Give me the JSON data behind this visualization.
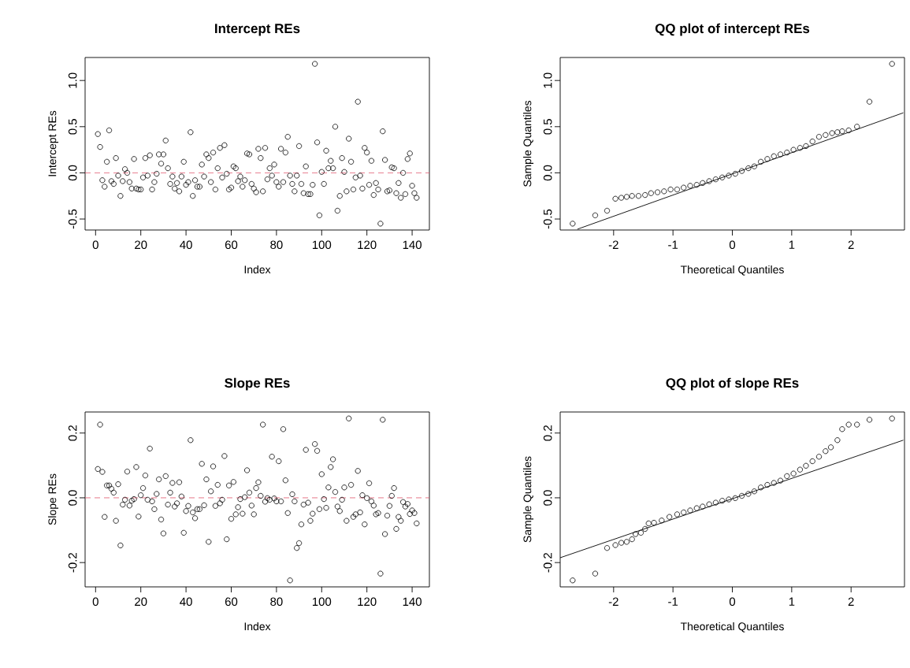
{
  "chart_data": [
    {
      "type": "scatter",
      "title": "Intercept REs",
      "xlabel": "Index",
      "ylabel": "Intercept REs",
      "marker": "circle",
      "color": "#000000",
      "x": [
        1,
        2,
        3,
        4,
        5,
        6,
        7,
        8,
        9,
        10,
        11,
        12,
        13,
        14,
        15,
        16,
        17,
        18,
        19,
        20,
        21,
        22,
        23,
        24,
        25,
        26,
        27,
        28,
        29,
        30,
        31,
        32,
        33,
        34,
        35,
        36,
        37,
        38,
        39,
        40,
        41,
        42,
        43,
        44,
        45,
        46,
        47,
        48,
        49,
        50,
        51,
        52,
        53,
        54,
        55,
        56,
        57,
        58,
        59,
        60,
        61,
        62,
        63,
        64,
        65,
        66,
        67,
        68,
        69,
        70,
        71,
        72,
        73,
        74,
        75,
        76,
        77,
        78,
        79,
        80,
        81,
        82,
        83,
        84,
        85,
        86,
        87,
        88,
        89,
        90,
        91,
        92,
        93,
        94,
        95,
        96,
        97,
        98,
        99,
        100,
        101,
        102,
        103,
        104,
        105,
        106,
        107,
        108,
        109,
        110,
        111,
        112,
        113,
        114,
        115,
        116,
        117,
        118,
        119,
        120,
        121,
        122,
        123,
        124,
        125,
        126,
        127,
        128,
        129,
        130,
        131,
        132,
        133,
        134,
        135,
        136,
        137,
        138,
        139,
        140,
        141,
        142
      ],
      "values": [
        0.42,
        0.28,
        -0.08,
        -0.15,
        0.12,
        0.46,
        -0.09,
        -0.12,
        0.16,
        -0.03,
        -0.25,
        -0.09,
        0.04,
        0.0,
        -0.1,
        -0.17,
        0.15,
        -0.17,
        -0.18,
        -0.18,
        -0.05,
        0.16,
        -0.03,
        0.19,
        -0.18,
        -0.1,
        -0.01,
        0.2,
        0.1,
        0.2,
        0.35,
        0.05,
        -0.12,
        -0.04,
        -0.17,
        -0.11,
        -0.2,
        -0.04,
        0.12,
        -0.13,
        -0.1,
        0.44,
        -0.25,
        -0.08,
        -0.15,
        -0.15,
        0.09,
        -0.04,
        0.2,
        0.16,
        -0.1,
        0.22,
        -0.18,
        0.05,
        0.27,
        -0.05,
        0.3,
        -0.01,
        -0.18,
        -0.16,
        0.07,
        0.05,
        -0.09,
        -0.04,
        -0.15,
        -0.08,
        0.21,
        0.2,
        -0.12,
        -0.17,
        -0.21,
        0.26,
        0.16,
        -0.2,
        0.27,
        -0.07,
        0.05,
        -0.03,
        0.09,
        -0.1,
        -0.15,
        0.26,
        -0.1,
        0.22,
        0.39,
        -0.03,
        -0.12,
        -0.2,
        -0.03,
        0.29,
        -0.12,
        -0.22,
        0.07,
        -0.23,
        -0.23,
        -0.13,
        1.18,
        0.33,
        -0.46,
        0.01,
        -0.12,
        0.24,
        0.05,
        0.13,
        0.05,
        0.5,
        -0.41,
        -0.25,
        0.16,
        0.01,
        -0.2,
        0.37,
        0.12,
        -0.18,
        -0.05,
        0.77,
        -0.03,
        -0.17,
        0.27,
        0.22,
        -0.13,
        0.13,
        -0.24,
        -0.11,
        -0.18,
        -0.55,
        0.45,
        0.14,
        -0.2,
        -0.19,
        0.06,
        0.05,
        -0.22,
        -0.11,
        -0.27,
        0.0,
        -0.23,
        0.15,
        0.21,
        -0.14,
        -0.22,
        -0.27
      ],
      "xlim": [
        -4.64,
        147.64
      ],
      "ylim": [
        -0.619,
        1.249
      ],
      "xticks": [
        0,
        20,
        40,
        60,
        80,
        100,
        120,
        140
      ],
      "yticks": [
        {
          "value": -0.5,
          "label": "-0.5"
        },
        {
          "value": 0,
          "label": "0.0"
        },
        {
          "value": 0.5,
          "label": "0.5"
        },
        {
          "value": 1.0,
          "label": "1.0"
        }
      ],
      "ref_lines": [
        {
          "axis": "y",
          "value": 0,
          "color": "#df536b",
          "line_style": "dashed"
        }
      ]
    },
    {
      "type": "scatter",
      "title": "QQ plot of intercept REs",
      "xlabel": "Theoretical Quantiles",
      "ylabel": "Sample Quantiles",
      "series": [
        {
          "type": "scatter",
          "marker": "circle",
          "color": "#000000",
          "x": [
            -2.69,
            -2.31,
            -2.11,
            -1.97,
            -1.87,
            -1.78,
            -1.69,
            -1.58,
            -1.47,
            -1.37,
            -1.26,
            -1.15,
            -1.04,
            -0.93,
            -0.82,
            -0.71,
            -0.6,
            -0.5,
            -0.39,
            -0.28,
            -0.17,
            -0.06,
            0.05,
            0.16,
            0.27,
            0.37,
            0.48,
            0.59,
            0.7,
            0.81,
            0.92,
            1.03,
            1.14,
            1.24,
            1.35,
            1.46,
            1.57,
            1.68,
            1.77,
            1.85,
            1.96,
            2.1,
            2.31,
            2.69
          ],
          "values": [
            -0.55,
            -0.46,
            -0.41,
            -0.28,
            -0.27,
            -0.26,
            -0.25,
            -0.25,
            -0.24,
            -0.22,
            -0.21,
            -0.2,
            -0.18,
            -0.18,
            -0.16,
            -0.14,
            -0.13,
            -0.11,
            -0.09,
            -0.07,
            -0.05,
            -0.03,
            -0.01,
            0.02,
            0.05,
            0.07,
            0.12,
            0.15,
            0.18,
            0.2,
            0.22,
            0.25,
            0.27,
            0.29,
            0.34,
            0.39,
            0.41,
            0.43,
            0.44,
            0.45,
            0.46,
            0.5,
            0.77,
            1.18
          ]
        },
        {
          "type": "line",
          "marker": "none",
          "color": "#000000",
          "x": [
            -2.61,
            2.88
          ],
          "values": [
            -0.61,
            0.65
          ]
        }
      ],
      "xlim": [
        -2.9,
        2.9
      ],
      "ylim": [
        -0.619,
        1.249
      ],
      "xticks": [
        -2,
        -1,
        0,
        1,
        2
      ],
      "yticks": [
        {
          "value": -0.5,
          "label": "-0.5"
        },
        {
          "value": 0,
          "label": "0.0"
        },
        {
          "value": 0.5,
          "label": "0.5"
        },
        {
          "value": 1.0,
          "label": "1.0"
        }
      ]
    },
    {
      "type": "scatter",
      "title": "Slope REs",
      "xlabel": "Index",
      "ylabel": "Slope REs",
      "marker": "circle",
      "color": "#000000",
      "x": [
        1,
        2,
        3,
        4,
        5,
        6,
        7,
        8,
        9,
        10,
        11,
        12,
        13,
        14,
        15,
        16,
        17,
        18,
        19,
        20,
        21,
        22,
        23,
        24,
        25,
        26,
        27,
        28,
        29,
        30,
        31,
        32,
        33,
        34,
        35,
        36,
        37,
        38,
        39,
        40,
        41,
        42,
        43,
        44,
        45,
        46,
        47,
        48,
        49,
        50,
        51,
        52,
        53,
        54,
        55,
        56,
        57,
        58,
        59,
        60,
        61,
        62,
        63,
        64,
        65,
        66,
        67,
        68,
        69,
        70,
        71,
        72,
        73,
        74,
        75,
        76,
        77,
        78,
        79,
        80,
        81,
        82,
        83,
        84,
        85,
        86,
        87,
        88,
        89,
        90,
        91,
        92,
        93,
        94,
        95,
        96,
        97,
        98,
        99,
        100,
        101,
        102,
        103,
        104,
        105,
        106,
        107,
        108,
        109,
        110,
        111,
        112,
        113,
        114,
        115,
        116,
        117,
        118,
        119,
        120,
        121,
        122,
        123,
        124,
        125,
        126,
        127,
        128,
        129,
        130,
        131,
        132,
        133,
        134,
        135,
        136,
        137,
        138,
        139,
        140,
        141,
        142
      ],
      "values": [
        0.089,
        0.226,
        0.08,
        -0.059,
        0.038,
        0.038,
        0.028,
        0.016,
        -0.071,
        0.042,
        -0.147,
        -0.021,
        -0.006,
        0.081,
        -0.024,
        -0.009,
        -0.004,
        0.095,
        -0.058,
        0.008,
        0.03,
        0.069,
        -0.006,
        0.152,
        -0.011,
        -0.035,
        0.012,
        0.057,
        -0.067,
        -0.11,
        0.067,
        -0.021,
        0.016,
        0.046,
        -0.027,
        -0.017,
        0.048,
        0.004,
        -0.108,
        -0.041,
        -0.025,
        0.178,
        -0.045,
        -0.063,
        -0.035,
        -0.035,
        0.105,
        -0.023,
        0.057,
        -0.136,
        0.02,
        0.097,
        -0.025,
        0.04,
        -0.017,
        -0.006,
        0.129,
        -0.128,
        0.038,
        -0.065,
        0.049,
        -0.051,
        -0.029,
        -0.004,
        -0.049,
        0.002,
        0.085,
        0.016,
        -0.024,
        -0.051,
        0.03,
        0.048,
        0.006,
        0.226,
        -0.012,
        -0.001,
        -0.006,
        0.127,
        -0.002,
        -0.011,
        0.113,
        -0.011,
        0.212,
        0.054,
        -0.047,
        -0.255,
        0.011,
        -0.011,
        -0.155,
        -0.14,
        -0.082,
        -0.021,
        0.148,
        -0.015,
        -0.071,
        -0.049,
        0.166,
        0.145,
        -0.035,
        0.073,
        -0.004,
        -0.031,
        0.032,
        0.095,
        0.119,
        0.018,
        -0.027,
        -0.041,
        -0.006,
        0.032,
        -0.071,
        0.245,
        0.04,
        -0.059,
        -0.051,
        0.083,
        -0.045,
        0.008,
        -0.082,
        -0.001,
        0.045,
        -0.011,
        -0.024,
        -0.051,
        -0.047,
        -0.234,
        0.241,
        -0.112,
        -0.055,
        -0.025,
        0.006,
        0.03,
        -0.096,
        -0.059,
        -0.071,
        -0.013,
        -0.027,
        -0.019,
        -0.05,
        -0.039,
        -0.047,
        -0.079
      ],
      "xlim": [
        -4.64,
        147.64
      ],
      "ylim": [
        -0.275,
        0.265
      ],
      "xticks": [
        0,
        20,
        40,
        60,
        80,
        100,
        120,
        140
      ],
      "yticks": [
        {
          "value": -0.2,
          "label": "-0.2"
        },
        {
          "value": 0,
          "label": "0.0"
        },
        {
          "value": 0.2,
          "label": "0.2"
        }
      ],
      "ref_lines": [
        {
          "axis": "y",
          "value": 0,
          "color": "#df536b",
          "line_style": "dashed"
        }
      ]
    },
    {
      "type": "scatter",
      "title": "QQ plot of slope REs",
      "xlabel": "Theoretical Quantiles",
      "ylabel": "Sample Quantiles",
      "series": [
        {
          "type": "scatter",
          "marker": "circle",
          "color": "#000000",
          "x": [
            -2.69,
            -2.31,
            -2.11,
            -1.97,
            -1.87,
            -1.78,
            -1.69,
            -1.63,
            -1.54,
            -1.47,
            -1.41,
            -1.32,
            -1.19,
            -1.06,
            -0.93,
            -0.82,
            -0.71,
            -0.6,
            -0.5,
            -0.39,
            -0.28,
            -0.17,
            -0.06,
            0.05,
            0.16,
            0.27,
            0.37,
            0.48,
            0.59,
            0.7,
            0.81,
            0.92,
            1.03,
            1.14,
            1.24,
            1.35,
            1.46,
            1.57,
            1.66,
            1.77,
            1.85,
            1.96,
            2.1,
            2.31,
            2.69
          ],
          "values": [
            -0.255,
            -0.234,
            -0.155,
            -0.146,
            -0.139,
            -0.136,
            -0.128,
            -0.112,
            -0.108,
            -0.096,
            -0.079,
            -0.077,
            -0.07,
            -0.059,
            -0.051,
            -0.045,
            -0.039,
            -0.032,
            -0.027,
            -0.02,
            -0.015,
            -0.009,
            -0.005,
            -0.001,
            0.006,
            0.012,
            0.02,
            0.032,
            0.04,
            0.046,
            0.053,
            0.067,
            0.075,
            0.087,
            0.099,
            0.113,
            0.127,
            0.144,
            0.156,
            0.178,
            0.212,
            0.226,
            0.226,
            0.241,
            0.245
          ]
        },
        {
          "type": "line",
          "marker": "none",
          "color": "#000000",
          "x": [
            -2.9,
            2.88
          ],
          "values": [
            -0.185,
            0.178
          ]
        }
      ],
      "xlim": [
        -2.9,
        2.9
      ],
      "ylim": [
        -0.275,
        0.265
      ],
      "xticks": [
        -2,
        -1,
        0,
        1,
        2
      ],
      "yticks": [
        {
          "value": -0.2,
          "label": "-0.2"
        },
        {
          "value": 0,
          "label": "0.0"
        },
        {
          "value": 0.2,
          "label": "0.2"
        }
      ]
    }
  ]
}
